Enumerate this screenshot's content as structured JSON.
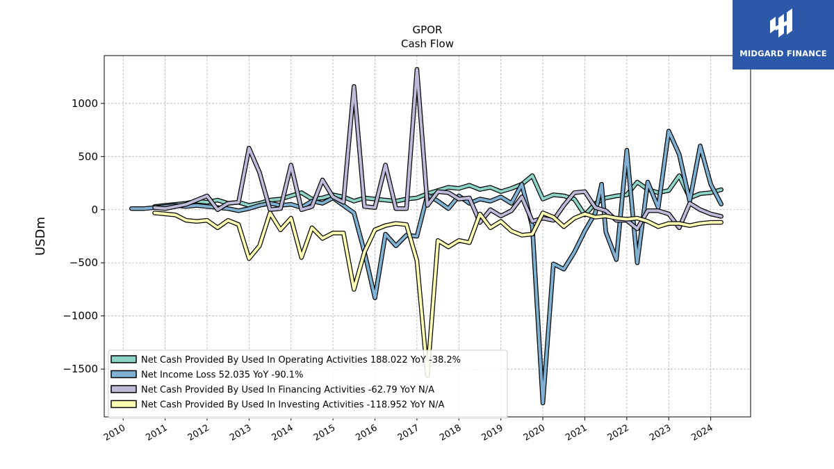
{
  "brand": {
    "name": "MIDGARD FINANCE",
    "color": "#2b58a8"
  },
  "chart_data": {
    "type": "line",
    "title": "GPOR",
    "subtitle": "Cash Flow",
    "xlabel": "",
    "ylabel": "USDm",
    "ylim": [
      -1950,
      1450
    ],
    "xlim": [
      2009.55,
      2024.95
    ],
    "yticks": [
      1000,
      500,
      0,
      -500,
      -1000,
      -1500
    ],
    "ytick_labels": [
      "1000",
      "500",
      "0",
      "−500",
      "−1000",
      "−1500"
    ],
    "xticks": [
      2010,
      2011,
      2012,
      2013,
      2014,
      2015,
      2016,
      2017,
      2018,
      2019,
      2020,
      2021,
      2022,
      2023,
      2024
    ],
    "xtick_labels": [
      "2010",
      "2011",
      "2012",
      "2013",
      "2014",
      "2015",
      "2016",
      "2017",
      "2018",
      "2019",
      "2020",
      "2021",
      "2022",
      "2023",
      "2024"
    ],
    "grid": true,
    "legend_position": "lower-left",
    "series": [
      {
        "name": "Net Cash Provided By Used In Operating Activities",
        "legend_label": "Net Cash Provided By Used In Operating Activities  188.022 YoY -38.2%",
        "color": "#8dd3c7",
        "x": [
          2010.75,
          2011.0,
          2011.25,
          2011.5,
          2011.75,
          2012.0,
          2012.25,
          2012.5,
          2012.75,
          2013.0,
          2013.25,
          2013.5,
          2013.75,
          2014.0,
          2014.25,
          2014.5,
          2014.75,
          2015.0,
          2015.25,
          2015.5,
          2015.75,
          2016.0,
          2016.25,
          2016.5,
          2016.75,
          2017.0,
          2017.25,
          2017.5,
          2017.75,
          2018.0,
          2018.25,
          2018.5,
          2018.75,
          2019.0,
          2019.25,
          2019.5,
          2019.75,
          2020.0,
          2020.25,
          2020.5,
          2020.75,
          2021.0,
          2021.25,
          2021.5,
          2021.75,
          2022.0,
          2022.25,
          2022.5,
          2022.75,
          2023.0,
          2023.25,
          2023.5,
          2023.75,
          2024.0,
          2024.25
        ],
        "y": [
          30,
          40,
          50,
          60,
          80,
          70,
          90,
          60,
          70,
          40,
          60,
          90,
          100,
          130,
          160,
          100,
          110,
          140,
          120,
          80,
          110,
          100,
          90,
          80,
          100,
          110,
          150,
          180,
          210,
          200,
          230,
          190,
          210,
          170,
          200,
          240,
          320,
          100,
          140,
          130,
          100,
          -50,
          60,
          110,
          130,
          140,
          260,
          190,
          160,
          180,
          320,
          110,
          150,
          160,
          188
        ]
      },
      {
        "name": "Net Income Loss",
        "legend_label": "Net Income Loss  52.035 YoY -90.1%",
        "color": "#80b1d3",
        "x": [
          2010.2,
          2010.5,
          2010.75,
          2011.0,
          2011.25,
          2011.5,
          2011.75,
          2012.0,
          2012.25,
          2012.5,
          2012.75,
          2013.0,
          2013.25,
          2013.5,
          2013.75,
          2014.0,
          2014.25,
          2014.5,
          2014.75,
          2015.0,
          2015.25,
          2015.5,
          2015.75,
          2016.0,
          2016.25,
          2016.5,
          2016.75,
          2017.0,
          2017.25,
          2017.5,
          2017.75,
          2018.0,
          2018.25,
          2018.5,
          2018.75,
          2019.0,
          2019.25,
          2019.5,
          2019.75,
          2020.0,
          2020.25,
          2020.5,
          2020.75,
          2021.0,
          2021.25,
          2021.4,
          2021.5,
          2021.75,
          2022.0,
          2022.25,
          2022.5,
          2022.75,
          2023.0,
          2023.25,
          2023.5,
          2023.75,
          2024.0,
          2024.25
        ],
        "y": [
          10,
          10,
          20,
          30,
          40,
          30,
          40,
          30,
          20,
          10,
          -10,
          10,
          40,
          60,
          40,
          50,
          20,
          80,
          60,
          110,
          40,
          -30,
          -400,
          -830,
          -230,
          -340,
          -240,
          -250,
          140,
          80,
          10,
          130,
          60,
          100,
          80,
          120,
          60,
          240,
          -160,
          -1820,
          -510,
          -560,
          -400,
          -200,
          -30,
          240,
          -210,
          -470,
          560,
          -500,
          260,
          20,
          740,
          520,
          80,
          600,
          240,
          52
        ]
      },
      {
        "name": "Net Cash Provided By Used In Financing Activities",
        "legend_label": "Net Cash Provided By Used In Financing Activities  -62.79 YoY N/A",
        "color": "#bebada",
        "x": [
          2010.75,
          2011.0,
          2011.25,
          2011.5,
          2011.75,
          2012.0,
          2012.25,
          2012.5,
          2012.75,
          2013.0,
          2013.25,
          2013.5,
          2013.75,
          2014.0,
          2014.25,
          2014.5,
          2014.75,
          2015.0,
          2015.25,
          2015.5,
          2015.75,
          2016.0,
          2016.25,
          2016.5,
          2016.75,
          2017.0,
          2017.25,
          2017.5,
          2017.75,
          2018.0,
          2018.25,
          2018.5,
          2018.75,
          2019.0,
          2019.25,
          2019.5,
          2019.75,
          2020.0,
          2020.25,
          2020.5,
          2020.75,
          2021.0,
          2021.25,
          2021.5,
          2021.75,
          2022.0,
          2022.25,
          2022.5,
          2022.75,
          2023.0,
          2023.25,
          2023.5,
          2023.75,
          2024.0,
          2024.25
        ],
        "y": [
          20,
          10,
          30,
          50,
          90,
          130,
          0,
          60,
          70,
          580,
          350,
          0,
          10,
          420,
          0,
          30,
          280,
          120,
          70,
          1160,
          30,
          20,
          420,
          10,
          10,
          1320,
          40,
          170,
          160,
          100,
          110,
          -120,
          0,
          -60,
          -10,
          120,
          -110,
          -80,
          -100,
          40,
          160,
          170,
          20,
          -10,
          -100,
          -100,
          -180,
          -10,
          -10,
          -40,
          -170,
          60,
          0,
          -40,
          -63
        ]
      },
      {
        "name": "Net Cash Provided By Used In Investing Activities",
        "legend_label": "Net Cash Provided By Used In Investing Activities  -118.952 YoY N/A",
        "color": "#ffffb3",
        "x": [
          2010.75,
          2011.0,
          2011.25,
          2011.5,
          2011.75,
          2012.0,
          2012.25,
          2012.5,
          2012.75,
          2013.0,
          2013.25,
          2013.5,
          2013.75,
          2014.0,
          2014.25,
          2014.5,
          2014.75,
          2015.0,
          2015.25,
          2015.5,
          2015.75,
          2016.0,
          2016.25,
          2016.5,
          2016.75,
          2017.0,
          2017.25,
          2017.5,
          2017.75,
          2018.0,
          2018.25,
          2018.5,
          2018.75,
          2019.0,
          2019.25,
          2019.5,
          2019.75,
          2020.0,
          2020.25,
          2020.5,
          2020.75,
          2021.0,
          2021.25,
          2021.5,
          2021.75,
          2022.0,
          2022.25,
          2022.5,
          2022.75,
          2023.0,
          2023.25,
          2023.5,
          2023.75,
          2024.0,
          2024.25
        ],
        "y": [
          -30,
          -40,
          -50,
          -100,
          -110,
          -100,
          -170,
          -100,
          -140,
          -460,
          -340,
          -30,
          -190,
          -80,
          -450,
          -170,
          -270,
          -220,
          -220,
          -750,
          -400,
          -190,
          -150,
          -130,
          -140,
          -480,
          -1560,
          -290,
          -350,
          -290,
          -310,
          -40,
          -170,
          -110,
          -200,
          -240,
          -230,
          -30,
          -70,
          -160,
          -80,
          -40,
          -70,
          -60,
          -80,
          -90,
          -80,
          -110,
          -160,
          -130,
          -130,
          -150,
          -130,
          -120,
          -119
        ]
      }
    ]
  }
}
